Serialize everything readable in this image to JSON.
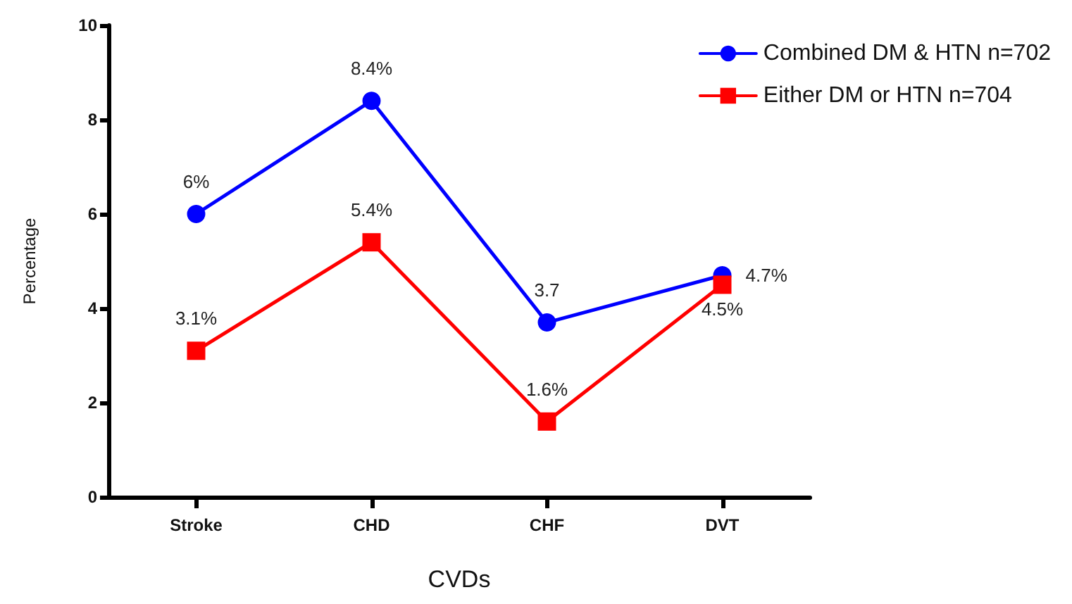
{
  "chart_data": {
    "type": "line",
    "xlabel": "CVDs",
    "ylabel": "Percentage",
    "categories": [
      "Stroke",
      "CHD",
      "CHF",
      "DVT"
    ],
    "series": [
      {
        "name": "Combined DM & HTN n=702",
        "color": "#0000ff",
        "marker": "circle",
        "values": [
          6,
          8.4,
          3.7,
          4.7
        ],
        "value_labels": [
          "6%",
          "8.4%",
          "3.7",
          "4.7%"
        ]
      },
      {
        "name": "Either DM or HTN n=704",
        "color": "#ff0000",
        "marker": "square",
        "values": [
          3.1,
          5.4,
          1.6,
          4.5
        ],
        "value_labels": [
          "3.1%",
          "5.4%",
          "1.6%",
          "4.5%"
        ]
      }
    ],
    "ylim": [
      0,
      10
    ],
    "yticks": [
      0,
      2,
      4,
      6,
      8,
      10
    ],
    "grid": false,
    "legend": "top right",
    "line_style": "solid"
  }
}
